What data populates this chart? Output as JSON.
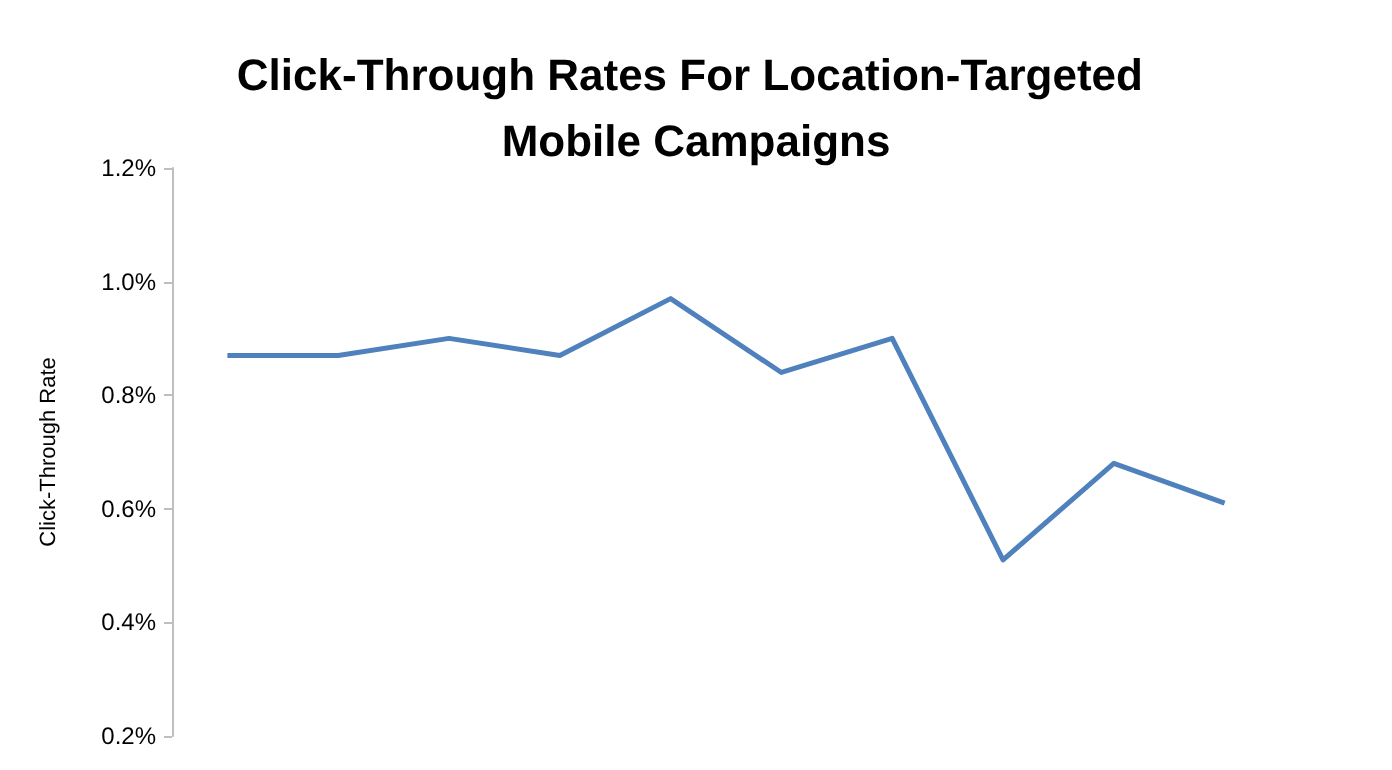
{
  "chart_data": {
    "type": "line",
    "title": "Click-Through Rates For Location-Targeted Mobile Campaigns",
    "ylabel": "Click-Through Rate",
    "categories": [
      null,
      null,
      null,
      null,
      null,
      null,
      null,
      null,
      null,
      null
    ],
    "series": [
      {
        "color": "#4f81bd",
        "values": [
          0.87,
          0.87,
          0.9,
          0.87,
          0.97,
          0.84,
          0.9,
          0.51,
          0.68,
          0.61
        ]
      }
    ],
    "ylim": [
      0.2,
      1.2
    ],
    "yticks": [
      {
        "value": 0.2,
        "label": "0.2%"
      },
      {
        "value": 0.4,
        "label": "0.4%"
      },
      {
        "value": 0.6,
        "label": "0.6%"
      },
      {
        "value": 0.8,
        "label": "0.8%"
      },
      {
        "value": 1.0,
        "label": "1.0%"
      },
      {
        "value": 1.2,
        "label": "1.2%"
      }
    ],
    "grid": false,
    "marker": "none",
    "tick_labels": "y"
  }
}
